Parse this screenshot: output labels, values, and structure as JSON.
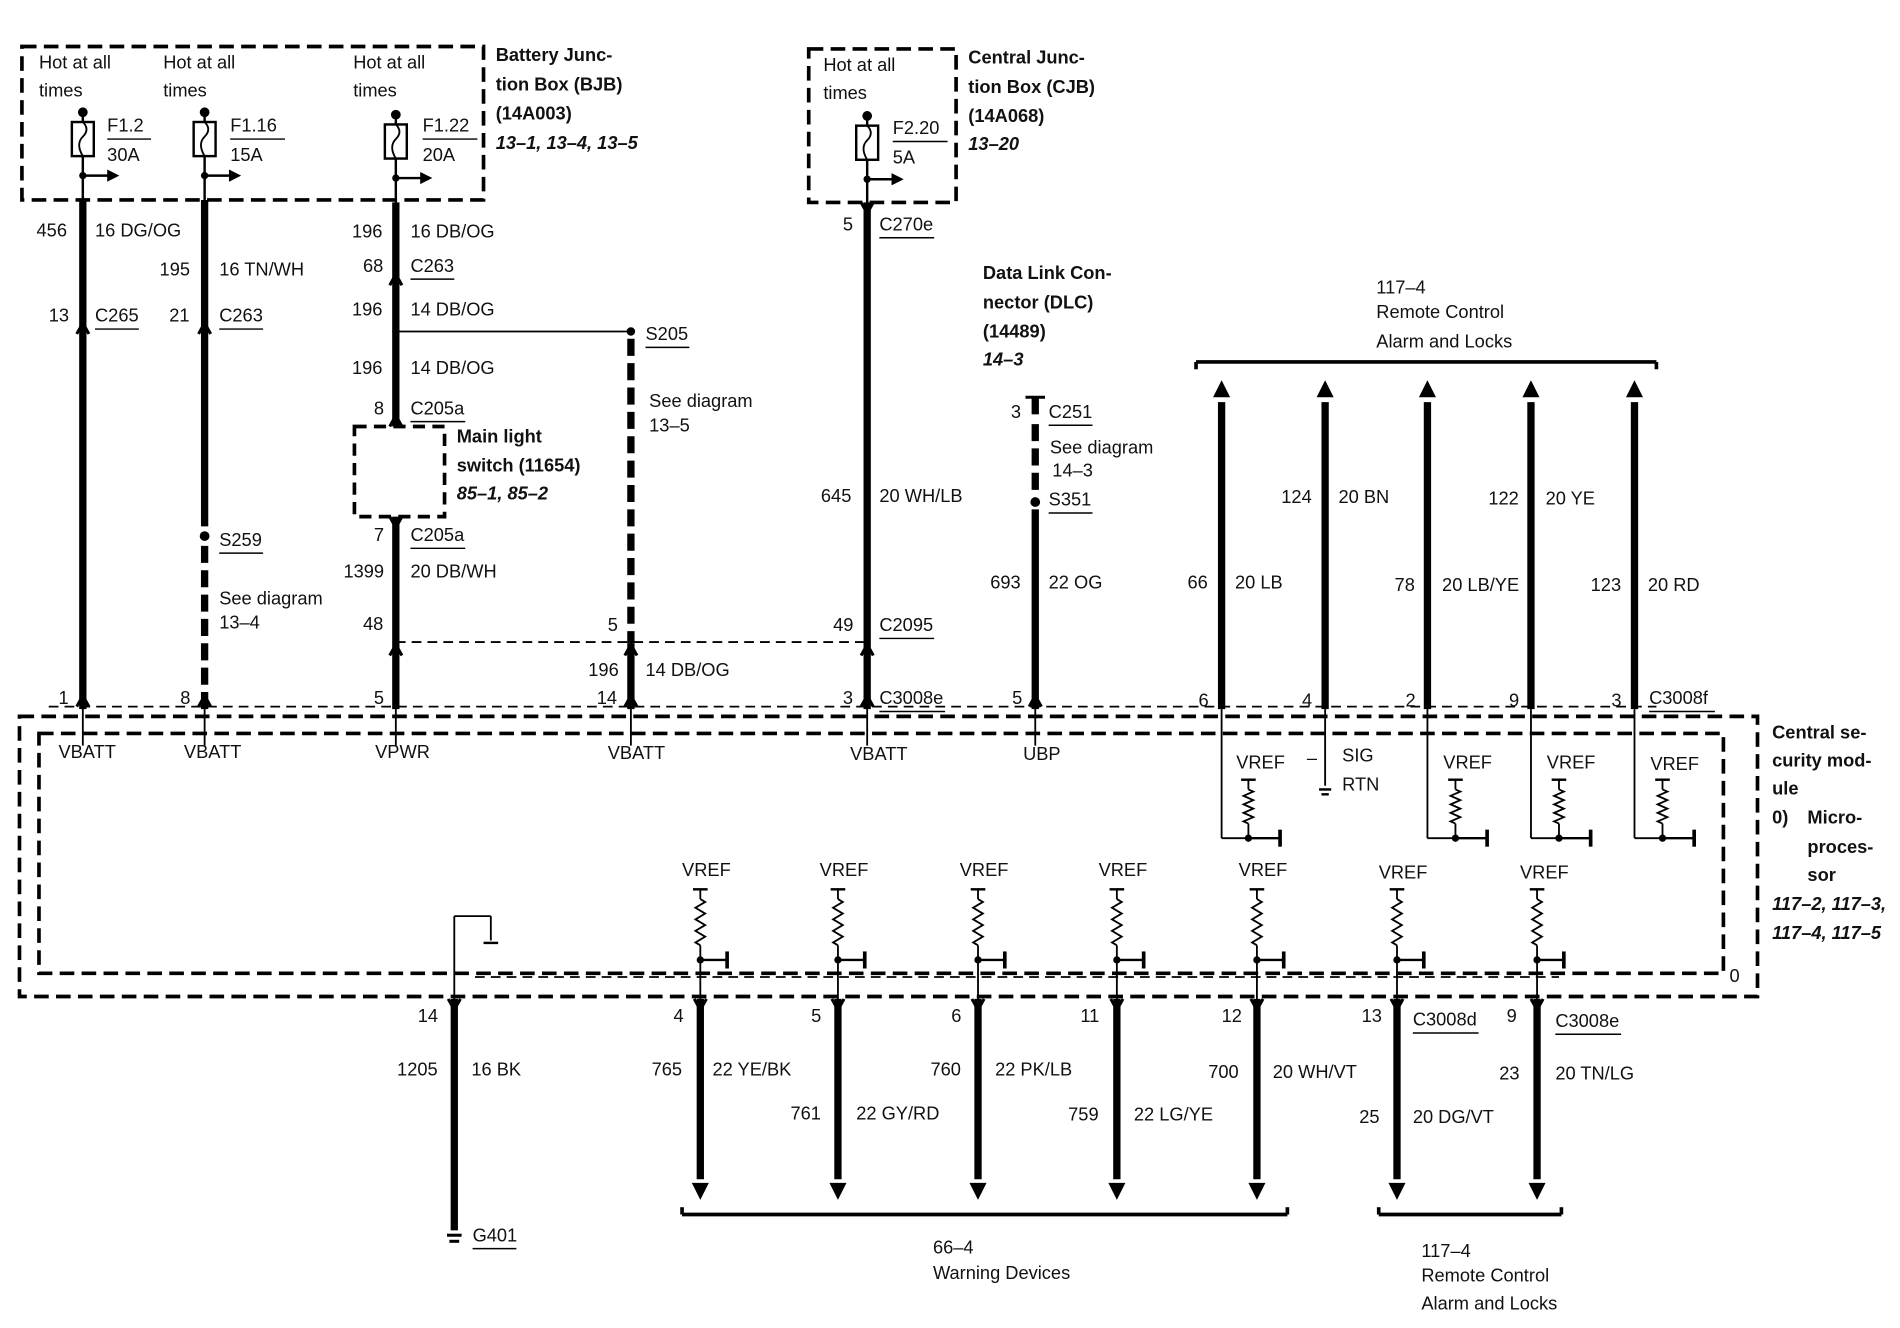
{
  "fuses": [
    {
      "hot_1": "Hot at all",
      "hot_2": "times",
      "id": "F1.2",
      "rating": "30A"
    },
    {
      "hot_1": "Hot at all",
      "hot_2": "times",
      "id": "F1.16",
      "rating": "15A"
    },
    {
      "hot_1": "Hot at all",
      "hot_2": "times",
      "id": "F1.22",
      "rating": "20A"
    },
    {
      "hot_1": "Hot at all",
      "hot_2": "times",
      "id": "F2.20",
      "rating": "5A"
    }
  ],
  "bjb": {
    "l1": "Battery Junc-",
    "l2": "tion Box (BJB)",
    "l3": "(14A003)",
    "ref": "13–1, 13–4, 13–5"
  },
  "cjb": {
    "l1": "Central Junc-",
    "l2": "tion Box (CJB)",
    "l3": "(14A068)",
    "ref": "13–20"
  },
  "dlc": {
    "l1": "Data Link Con-",
    "l2": "nector (DLC)",
    "l3": "(14489)",
    "ref": "14–3"
  },
  "switch": {
    "l1": "Main light",
    "l2": "switch (11654)",
    "ref": "85–1, 85–2"
  },
  "module": {
    "l1": "Central se-",
    "l2": "curity mod-",
    "l3": "ule",
    "num": "0)",
    "m1": "Micro-",
    "m2": "proces-",
    "m3": "sor",
    "ref1": "117–2, 117–3,",
    "ref2": "117–4, 117–5",
    "marker": "0"
  },
  "wire_labels": {
    "a": [
      "456",
      "16 DG/OG",
      "13"
    ],
    "b": [
      "195",
      "16 TN/WH",
      "21"
    ],
    "c": [
      "196",
      "16 DB/OG",
      "68",
      "196",
      "14 DB/OG",
      "196",
      "14 DB/OG",
      "8",
      "7",
      "1399",
      "20 DB/WH",
      "48",
      "5",
      "49",
      "196",
      "14 DB/OG"
    ],
    "d": [
      "5",
      "645",
      "20 WH/LB",
      "3"
    ],
    "e": [
      "3",
      "693",
      "22 OG",
      "5"
    ],
    "remote": [
      "66",
      "20 LB",
      "124",
      "20 BN",
      "78",
      "20 LB/YE",
      "122",
      "20 YE",
      "123",
      "20 RD"
    ],
    "bottom": [
      "1205",
      "16 BK",
      "765",
      "22 YE/BK",
      "760",
      "22 PK/LB",
      "700",
      "20 WH/VT",
      "23",
      "20 TN/LG",
      "761",
      "22 GY/RD",
      "759",
      "22 LG/YE",
      "25",
      "20 DG/VT"
    ]
  },
  "connectors": [
    "C265",
    "C263",
    "C263",
    "S205",
    "C205a",
    "C205a",
    "C2095",
    "C270e",
    "C3008e",
    "C251",
    "S351",
    "S259",
    "C3008f",
    "C3008d",
    "C3008e",
    "G401"
  ],
  "see_diagram": [
    {
      "l1": "See diagram",
      "l2": "13–4"
    },
    {
      "l1": "See diagram",
      "l2": "13–5"
    },
    {
      "l1": "See diagram",
      "l2": "14–3"
    }
  ],
  "top_pins": [
    "1",
    "8",
    "5",
    "14",
    "6",
    "4",
    "2",
    "9",
    "3"
  ],
  "bottom_pins": [
    "14",
    "4",
    "5",
    "6",
    "11",
    "12",
    "13",
    "9"
  ],
  "pin_functions": [
    "VBATT",
    "VBATT",
    "VPWR",
    "VBATT",
    "VBATT",
    "UBP",
    "VREF",
    "–",
    "SIG",
    "RTN",
    "VREF",
    "VREF",
    "VREF"
  ],
  "bottom_vref": [
    "VREF",
    "VREF",
    "VREF",
    "VREF",
    "VREF",
    "VREF",
    "VREF"
  ],
  "brackets": {
    "top": {
      "ref": "117–4",
      "l1": "Remote Control",
      "l2": "Alarm and Locks"
    },
    "warning": {
      "ref": "66–4",
      "l1": "Warning Devices"
    },
    "remote_bottom": {
      "ref": "117–4",
      "l1": "Remote Control",
      "l2": "Alarm and Locks"
    }
  }
}
